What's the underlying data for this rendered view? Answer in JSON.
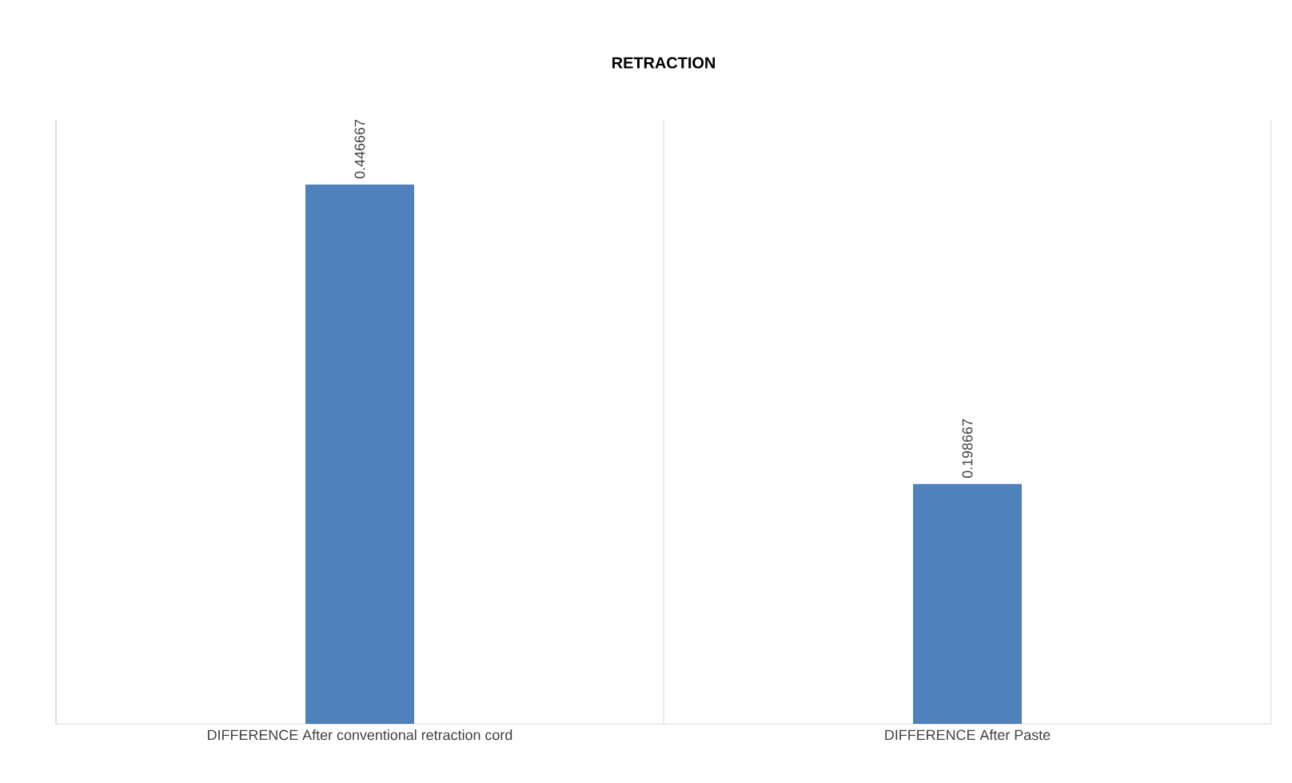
{
  "chart_data": {
    "type": "bar",
    "title": "RETRACTION",
    "categories": [
      "DIFFERENCE After conventional retraction cord",
      "DIFFERENCE After Paste"
    ],
    "values": [
      0.446667,
      0.198667
    ],
    "color": "#4f81bd",
    "data_labels": true,
    "grid": "x"
  }
}
